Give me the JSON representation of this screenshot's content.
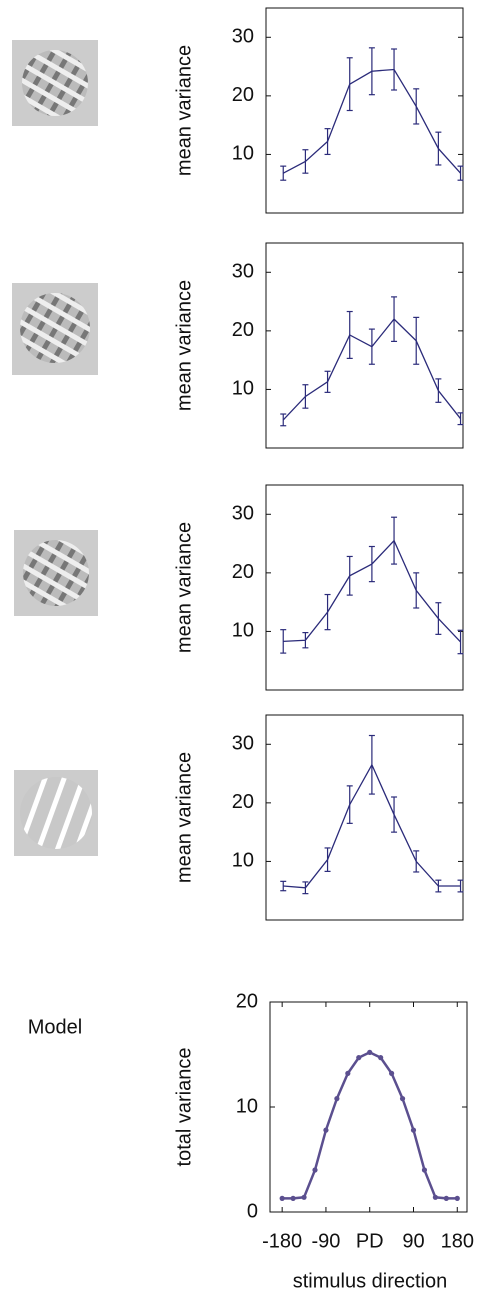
{
  "chart_data": [
    {
      "type": "line",
      "ylabel": "mean variance",
      "x": [
        -180,
        -135,
        -90,
        -45,
        0,
        45,
        90,
        135,
        180
      ],
      "series": [
        {
          "color": "#2b2b7a",
          "values": [
            6.8,
            8.8,
            12.2,
            22,
            24.2,
            24.5,
            18.2,
            11,
            6.8
          ],
          "errors": [
            1.2,
            2,
            2.2,
            4.5,
            4,
            3.5,
            3,
            2.8,
            1.2
          ]
        }
      ],
      "xlim": [
        -215,
        185
      ],
      "ylim": [
        0,
        35
      ],
      "yticks": [
        10,
        20,
        30
      ]
    },
    {
      "type": "line",
      "ylabel": "mean variance",
      "x": [
        -180,
        -135,
        -90,
        -45,
        0,
        45,
        90,
        135,
        180
      ],
      "series": [
        {
          "color": "#2b2b7a",
          "values": [
            4.8,
            8.8,
            11.3,
            19.3,
            17.3,
            22,
            18.3,
            9.8,
            5
          ],
          "errors": [
            1,
            2,
            1.8,
            4,
            3,
            3.8,
            4,
            2,
            1
          ]
        }
      ],
      "xlim": [
        -215,
        185
      ],
      "ylim": [
        0,
        35
      ],
      "yticks": [
        10,
        20,
        30
      ]
    },
    {
      "type": "line",
      "ylabel": "mean variance",
      "x": [
        -180,
        -135,
        -90,
        -45,
        0,
        45,
        90,
        135,
        180
      ],
      "series": [
        {
          "color": "#2b2b7a",
          "values": [
            8.3,
            8.5,
            13.3,
            19.5,
            21.5,
            25.5,
            17,
            12.2,
            8.2
          ],
          "errors": [
            2,
            1.3,
            3,
            3.3,
            3,
            4,
            3,
            2.7,
            2
          ]
        }
      ],
      "xlim": [
        -215,
        185
      ],
      "ylim": [
        0,
        35
      ],
      "yticks": [
        10,
        20,
        30
      ]
    },
    {
      "type": "line",
      "ylabel": "mean variance",
      "x": [
        -180,
        -135,
        -90,
        -45,
        0,
        45,
        90,
        135,
        180
      ],
      "series": [
        {
          "color": "#2b2b7a",
          "values": [
            5.8,
            5.5,
            10.3,
            19.7,
            26.5,
            18,
            10,
            5.8,
            5.8
          ],
          "errors": [
            0.8,
            1,
            2,
            3.2,
            5,
            3,
            1.8,
            1,
            1
          ]
        }
      ],
      "xlim": [
        -215,
        185
      ],
      "ylim": [
        0,
        35
      ],
      "yticks": [
        10,
        20,
        30
      ]
    },
    {
      "type": "line",
      "annotation": "Model",
      "ylabel": "total variance",
      "xlabel": "stimulus direction",
      "x": [
        -180,
        -157.5,
        -135,
        -112.5,
        -90,
        -67.5,
        -45,
        -22.5,
        0,
        22.5,
        45,
        67.5,
        90,
        112.5,
        135,
        157.5,
        180
      ],
      "series": [
        {
          "color": "#5b4f8f",
          "values": [
            1.3,
            1.3,
            1.4,
            4,
            7.8,
            10.8,
            13.2,
            14.7,
            15.2,
            14.7,
            13.2,
            10.8,
            7.8,
            4,
            1.4,
            1.3,
            1.3
          ]
        }
      ],
      "xlim": [
        -205,
        200
      ],
      "ylim": [
        0,
        20
      ],
      "yticks": [
        0,
        10,
        20
      ],
      "xticks": [
        -180,
        -90,
        {
          "value": 0,
          "label": "PD"
        },
        90,
        180
      ]
    }
  ]
}
